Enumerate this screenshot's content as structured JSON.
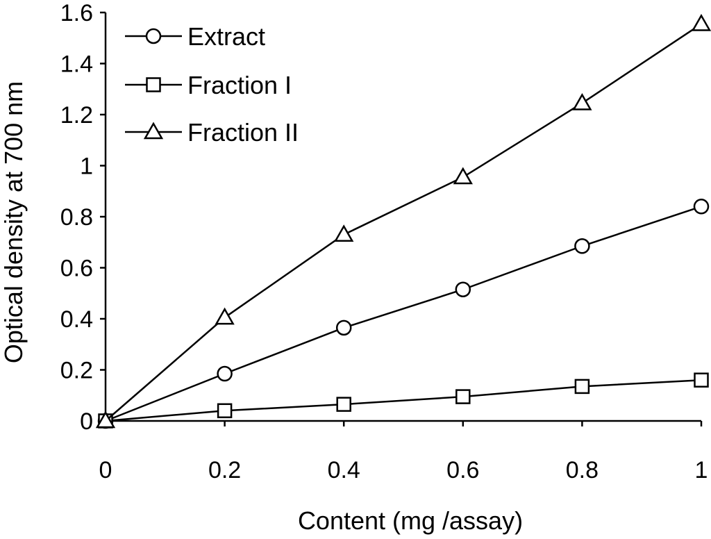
{
  "chart_data": {
    "type": "line",
    "xlabel": "Content (mg /assay)",
    "ylabel": "Optical density at 700 nm",
    "xlim": [
      0,
      1
    ],
    "ylim": [
      0,
      1.6
    ],
    "x_ticks": [
      "0",
      "0.2",
      "0.4",
      "0.6",
      "0.8",
      "1"
    ],
    "y_ticks": [
      "0",
      "0.2",
      "0.4",
      "0.6",
      "0.8",
      "1",
      "1.2",
      "1.4",
      "1.6"
    ],
    "grid": false,
    "legend_position": "top-left",
    "x": [
      0,
      0.2,
      0.4,
      0.6,
      0.8,
      1.0
    ],
    "series": [
      {
        "name": "Extract",
        "marker": "circle",
        "values": [
          0,
          0.185,
          0.365,
          0.515,
          0.685,
          0.84
        ]
      },
      {
        "name": "Fraction I",
        "marker": "square",
        "values": [
          0,
          0.04,
          0.065,
          0.095,
          0.135,
          0.16
        ]
      },
      {
        "name": "Fraction II",
        "marker": "triangle",
        "values": [
          0,
          0.405,
          0.73,
          0.955,
          1.245,
          1.555
        ]
      }
    ]
  }
}
